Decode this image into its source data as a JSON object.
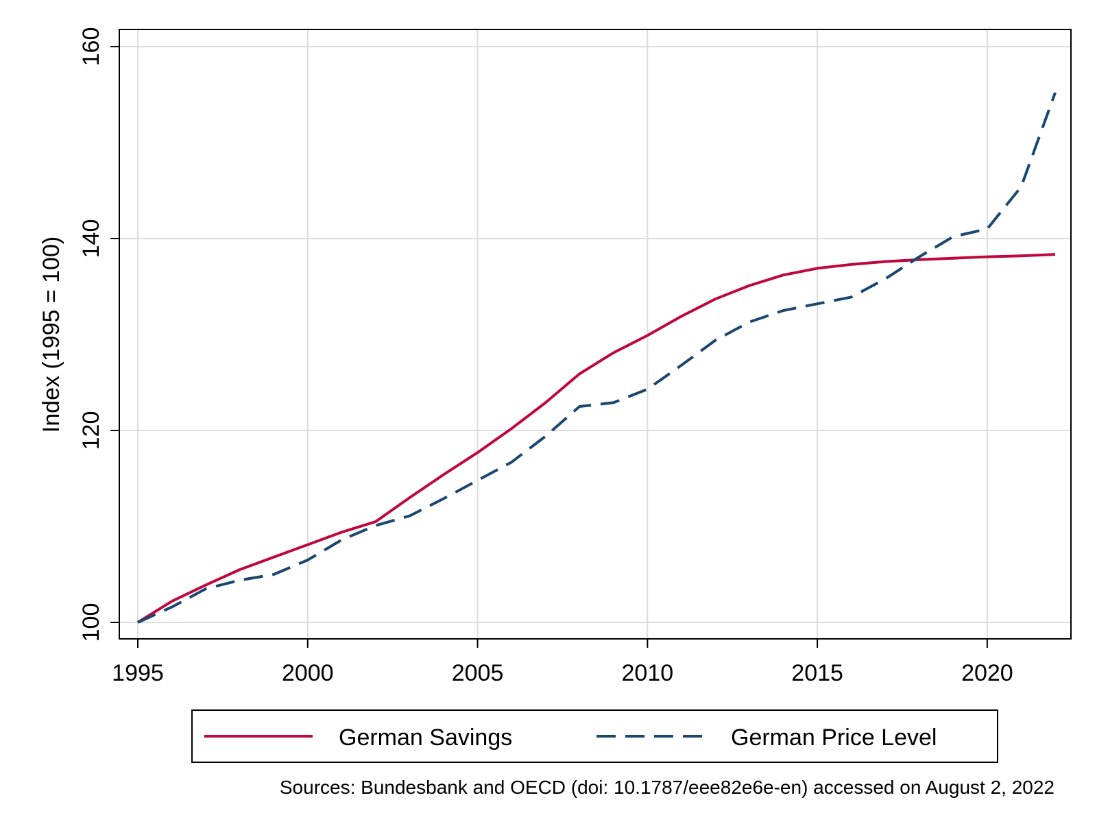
{
  "chart_data": {
    "type": "line",
    "ylabel": "Index (1995 = 100)",
    "xlim": [
      1995,
      2022
    ],
    "ylim": [
      100,
      160
    ],
    "x_ticks": [
      "1995",
      "2000",
      "2005",
      "2010",
      "2015",
      "2020"
    ],
    "y_ticks": [
      "100",
      "120",
      "140",
      "160"
    ],
    "grid": true,
    "legend_position": "bottom",
    "source_note": "Sources: Bundesbank and OECD (doi: 10.1787/eee82e6e-en) accessed on August 2, 2022",
    "x": [
      1995,
      1996,
      1997,
      1998,
      1999,
      2000,
      2001,
      2002,
      2003,
      2004,
      2005,
      2006,
      2007,
      2008,
      2009,
      2010,
      2011,
      2012,
      2013,
      2014,
      2015,
      2016,
      2017,
      2018,
      2019,
      2020,
      2021,
      2022
    ],
    "series": [
      {
        "name": "German Savings",
        "color": "#c0063f",
        "style": "solid",
        "values": [
          100.0,
          102.2,
          103.9,
          105.5,
          106.8,
          108.1,
          109.4,
          110.5,
          113.0,
          115.4,
          117.7,
          120.2,
          122.9,
          125.9,
          128.1,
          129.9,
          131.9,
          133.7,
          135.1,
          136.2,
          136.9,
          137.3,
          137.6,
          137.8,
          137.95,
          138.1,
          138.2,
          138.35
        ]
      },
      {
        "name": "German Price Level",
        "color": "#1a476f",
        "style": "dashed",
        "values": [
          100.0,
          101.6,
          103.5,
          104.4,
          105.0,
          106.5,
          108.6,
          110.1,
          111.1,
          112.9,
          114.8,
          116.7,
          119.4,
          122.5,
          122.9,
          124.3,
          126.8,
          129.4,
          131.3,
          132.5,
          133.2,
          133.9,
          135.8,
          138.1,
          140.2,
          141.0,
          145.4,
          155.2
        ]
      }
    ]
  }
}
